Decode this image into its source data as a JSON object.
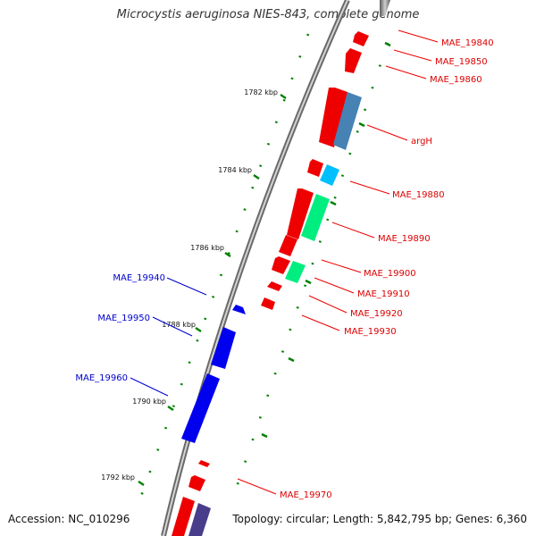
{
  "title": "Microcystis aeruginosa NIES-843, complete genome",
  "footer": {
    "accession": "Accession: NC_010296",
    "stats": "Topology: circular; Length: 5,842,795 bp; Genes: 6,360"
  },
  "colors": {
    "backbone": "#888888",
    "forward_gene": "#0000ee",
    "reverse_gene": "#ee0000",
    "steel_gene": "#4682b4",
    "sky_gene": "#00bfff",
    "spring_gene": "#00ee7f",
    "slate_gene": "#483d8b",
    "tick": "#008000",
    "right_label": "#dd0000",
    "left_label": "#0000cc"
  },
  "scale_labels": [
    "1782 kbp",
    "1784 kbp",
    "1786 kbp",
    "1788 kbp",
    "1790 kbp",
    "1792 kbp"
  ],
  "right_labels": [
    "MAE_19840",
    "MAE_19850",
    "MAE_19860",
    "argH",
    "MAE_19880",
    "MAE_19890",
    "MAE_19900",
    "MAE_19910",
    "MAE_19920",
    "MAE_19930",
    "MAE_19970"
  ],
  "left_labels": [
    "MAE_19940",
    "MAE_19950",
    "MAE_19960"
  ]
}
